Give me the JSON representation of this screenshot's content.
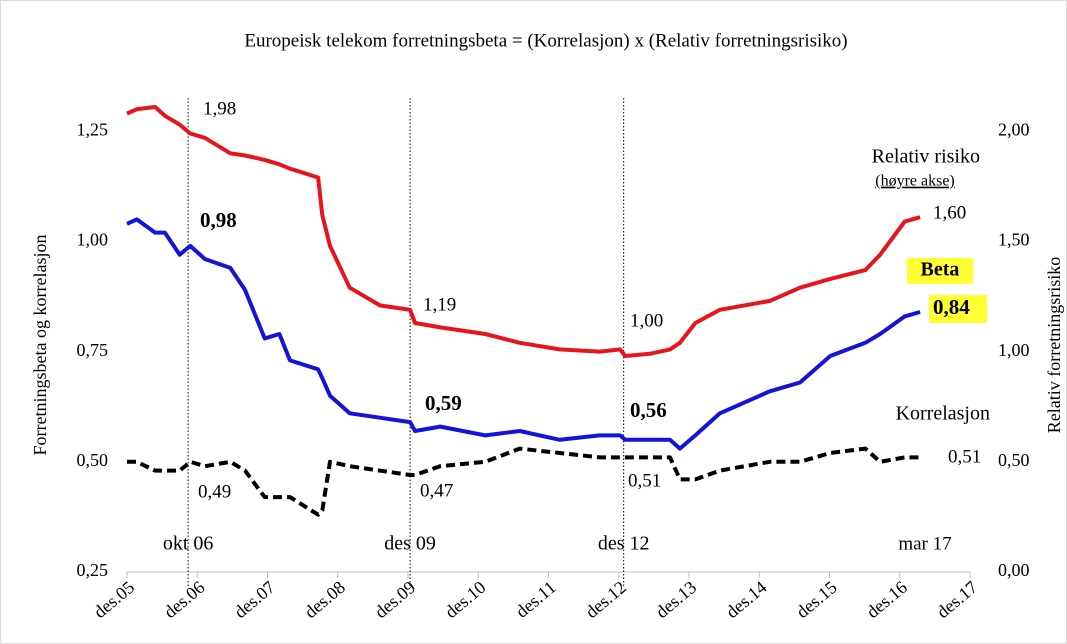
{
  "chart_data": {
    "type": "line",
    "title": "Europeisk telekom forretningsbeta = (Korrelasjon) x (Relativ forretningsrisiko)",
    "ylabel": "Forretningsbeta og korrelasjon",
    "y2label": "Relativ forretningsrisiko",
    "x": [
      2005.92,
      2006.06,
      2006.32,
      2006.46,
      2006.67,
      2006.82,
      2007.03,
      2007.39,
      2007.6,
      2007.88,
      2008.09,
      2008.24,
      2008.64,
      2008.7,
      2008.81,
      2009.09,
      2009.52,
      2009.95,
      2010.02,
      2010.38,
      2011.02,
      2011.51,
      2012.08,
      2012.65,
      2012.94,
      2013.01,
      2013.36,
      2013.65,
      2013.79,
      2014.01,
      2014.36,
      2015.07,
      2015.5,
      2015.93,
      2016.43,
      2016.64,
      2016.99,
      2017.21
    ],
    "series": [
      {
        "name": "Relativ risiko",
        "color": "#e8141b",
        "axis": "y2",
        "dash": false,
        "values": [
          2.08,
          2.1,
          2.11,
          2.07,
          2.03,
          1.99,
          1.97,
          1.9,
          1.89,
          1.87,
          1.85,
          1.83,
          1.79,
          1.62,
          1.48,
          1.29,
          1.21,
          1.19,
          1.13,
          1.11,
          1.08,
          1.04,
          1.01,
          1.0,
          1.01,
          0.98,
          0.99,
          1.01,
          1.04,
          1.13,
          1.19,
          1.23,
          1.29,
          1.33,
          1.37,
          1.44,
          1.59,
          1.61
        ]
      },
      {
        "name": "Beta",
        "color": "#1414d8",
        "axis": "y",
        "dash": false,
        "values": [
          1.04,
          1.05,
          1.02,
          1.02,
          0.97,
          0.99,
          0.96,
          0.94,
          0.89,
          0.78,
          0.79,
          0.73,
          0.71,
          0.69,
          0.65,
          0.61,
          0.6,
          0.59,
          0.57,
          0.58,
          0.56,
          0.57,
          0.55,
          0.56,
          0.56,
          0.55,
          0.55,
          0.55,
          0.53,
          0.56,
          0.61,
          0.66,
          0.68,
          0.74,
          0.77,
          0.79,
          0.83,
          0.84
        ]
      },
      {
        "name": "Korrelasjon",
        "color": "#000000",
        "axis": "y",
        "dash": true,
        "values": [
          0.5,
          0.5,
          0.48,
          0.48,
          0.48,
          0.5,
          0.49,
          0.5,
          0.48,
          0.42,
          0.42,
          0.42,
          0.38,
          0.39,
          0.5,
          0.49,
          0.48,
          0.47,
          0.47,
          0.49,
          0.5,
          0.53,
          0.52,
          0.51,
          0.51,
          0.51,
          0.51,
          0.51,
          0.46,
          0.46,
          0.48,
          0.5,
          0.5,
          0.52,
          0.53,
          0.5,
          0.51,
          0.51
        ]
      }
    ],
    "xlim": [
      2005.92,
      2017.92
    ],
    "xticks": [
      {
        "value": 2005.92,
        "label": "des.05"
      },
      {
        "value": 2006.92,
        "label": "des.06"
      },
      {
        "value": 2007.92,
        "label": "des.07"
      },
      {
        "value": 2008.92,
        "label": "des.08"
      },
      {
        "value": 2009.92,
        "label": "des.09"
      },
      {
        "value": 2010.92,
        "label": "des.10"
      },
      {
        "value": 2011.92,
        "label": "des.11"
      },
      {
        "value": 2012.92,
        "label": "des.12"
      },
      {
        "value": 2013.92,
        "label": "des.13"
      },
      {
        "value": 2014.92,
        "label": "des.14"
      },
      {
        "value": 2015.92,
        "label": "des.15"
      },
      {
        "value": 2016.92,
        "label": "des.16"
      },
      {
        "value": 2017.92,
        "label": "des.17"
      }
    ],
    "ylim": [
      0.25,
      1.33
    ],
    "yticks": [
      {
        "value": 0.25,
        "label": "0,25"
      },
      {
        "value": 0.5,
        "label": "0,50"
      },
      {
        "value": 0.75,
        "label": "0,75"
      },
      {
        "value": 1,
        "label": "1,00"
      },
      {
        "value": 1.25,
        "label": "1,25"
      }
    ],
    "y2lim": [
      0,
      2.16
    ],
    "y2ticks": [
      {
        "value": 0,
        "label": "0,00"
      },
      {
        "value": 0.5,
        "label": "0,50"
      },
      {
        "value": 1,
        "label": "1,00"
      },
      {
        "value": 1.5,
        "label": "1,50"
      },
      {
        "value": 2,
        "label": "2,00"
      }
    ],
    "vlines": [
      {
        "x": 2006.79,
        "label": "okt 06"
      },
      {
        "x": 2009.95,
        "label": "des 09"
      },
      {
        "x": 2012.99,
        "label": "des 12"
      }
    ],
    "axis_note": "(høyre akse)",
    "annotations": [
      "1,98",
      "0,98",
      "0,49",
      "1,19",
      "0,59",
      "0,47",
      "1,00",
      "0,56",
      "0,51",
      "1,60",
      "0,84",
      "0,51",
      "mar 17"
    ],
    "grid": false
  }
}
